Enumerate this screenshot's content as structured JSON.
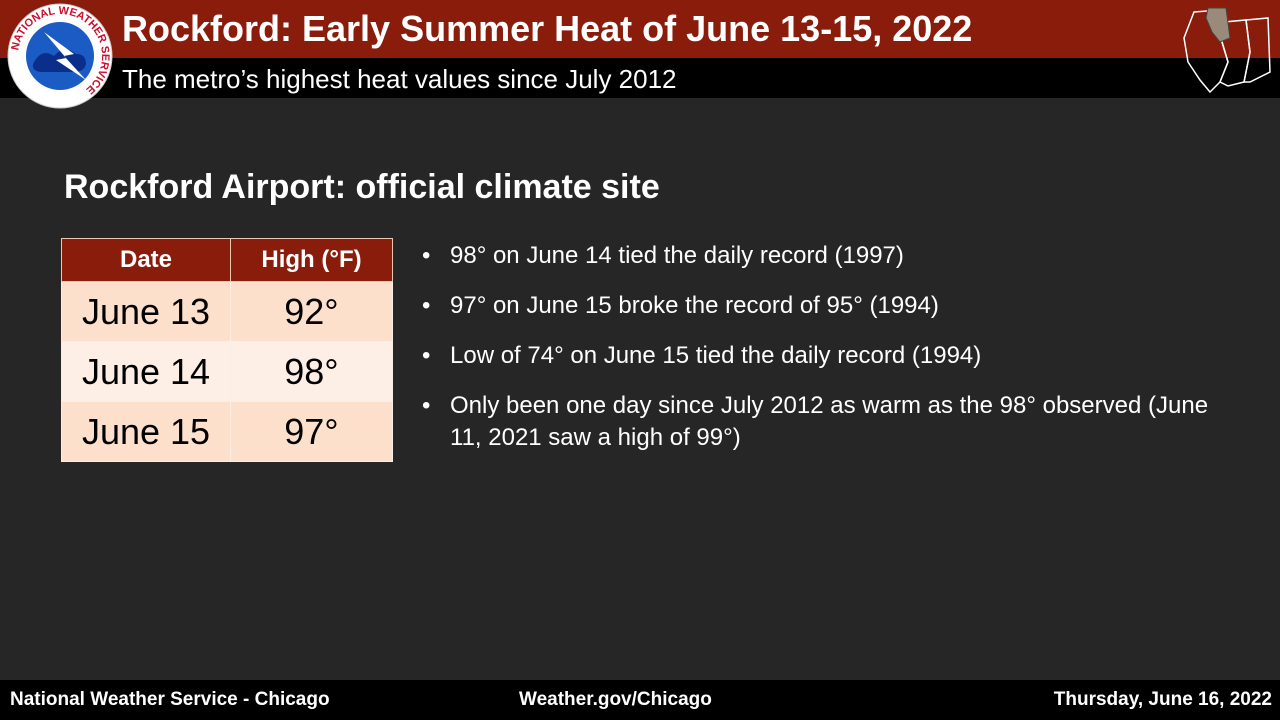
{
  "header": {
    "title": "Rockford:  Early Summer Heat of June 13-15, 2022",
    "subtitle": "The metro’s highest heat values since July 2012",
    "logo_text": "NATIONAL WEATHER SERVICE"
  },
  "section": {
    "heading": "Rockford Airport:  official climate site"
  },
  "table": {
    "columns": [
      "Date",
      "High  (°F)"
    ],
    "rows": [
      [
        "June 13",
        "92°"
      ],
      [
        "June 14",
        "98°"
      ],
      [
        "June 15",
        "97°"
      ]
    ]
  },
  "bullets": [
    "98° on June 14 tied the daily record (1997)",
    "97° on June 15 broke the record of 95° (1994)",
    "Low of 74° on June 15 tied the daily record (1994)",
    "Only been one day since July 2012 as warm as the 98° observed (June 11, 2021 saw a high of 99°)"
  ],
  "footer": {
    "left": "National  Weather Service - Chicago",
    "center": "Weather.gov/Chicago",
    "right": "Thursday, June 16, 2022"
  }
}
